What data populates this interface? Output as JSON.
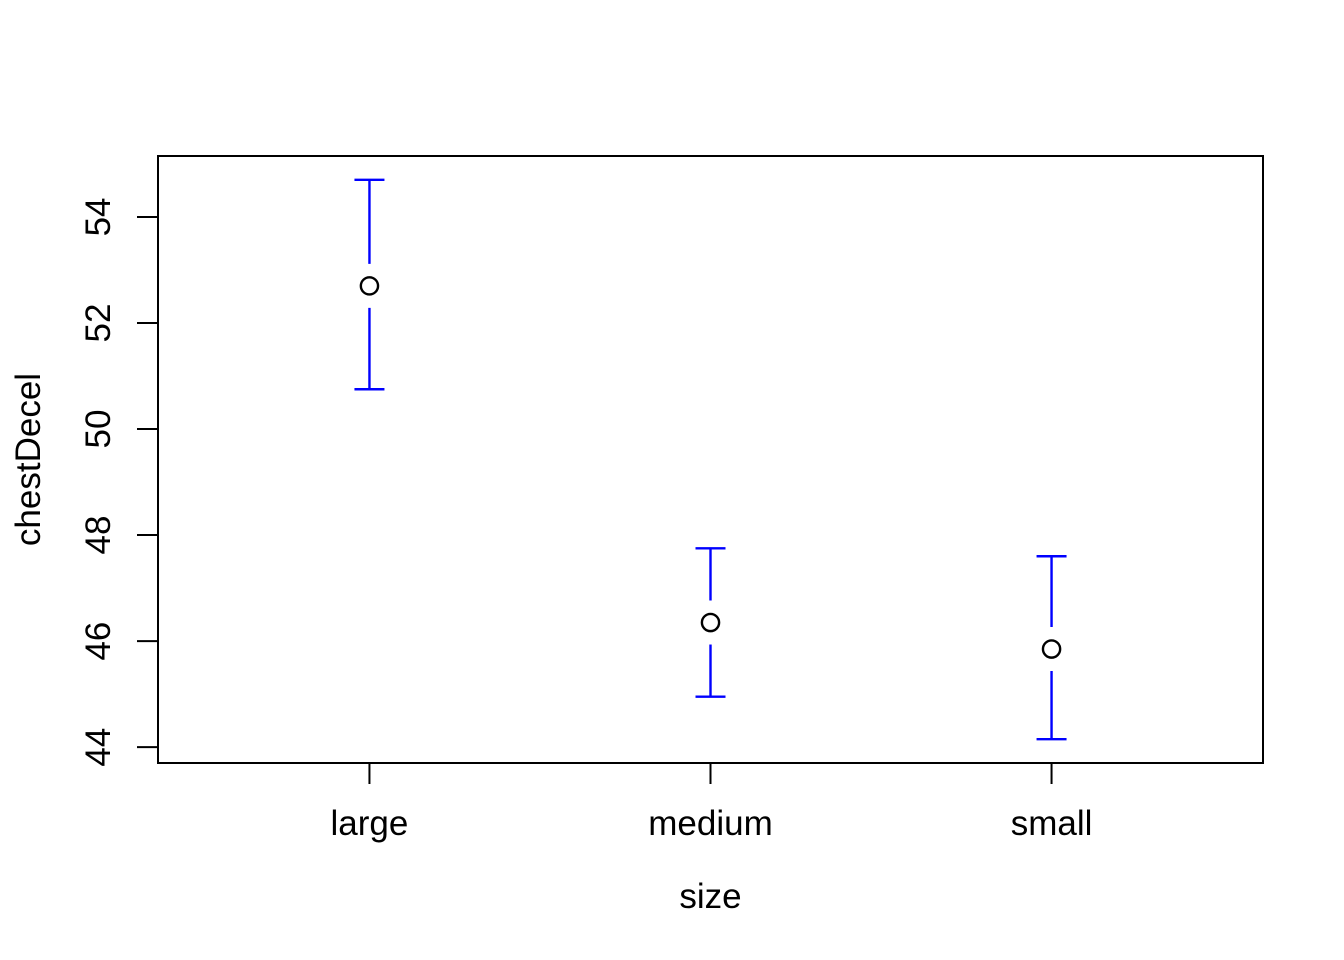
{
  "figure": {
    "background": "#FFFFFF"
  },
  "chart_data": {
    "type": "errorbar",
    "title": "",
    "xlabel": "size",
    "ylabel": "chestDecel",
    "categories": [
      "large",
      "medium",
      "small"
    ],
    "series": [
      {
        "name": "mean",
        "values": [
          52.7,
          46.35,
          45.85
        ]
      },
      {
        "name": "ci_lower",
        "values": [
          50.75,
          44.95,
          44.15
        ]
      },
      {
        "name": "ci_upper",
        "values": [
          54.7,
          47.75,
          47.6
        ]
      }
    ],
    "yticks": [
      44,
      46,
      48,
      50,
      52,
      54
    ],
    "ylim": [
      43.7,
      55.15
    ],
    "grid": false,
    "legend": null,
    "marker": "open-circle",
    "colors": {
      "error_bar": "#0000FF",
      "marker_stroke": "#000000",
      "marker_fill": "#FFFFFF",
      "axis": "#000000",
      "text": "#000000"
    }
  }
}
